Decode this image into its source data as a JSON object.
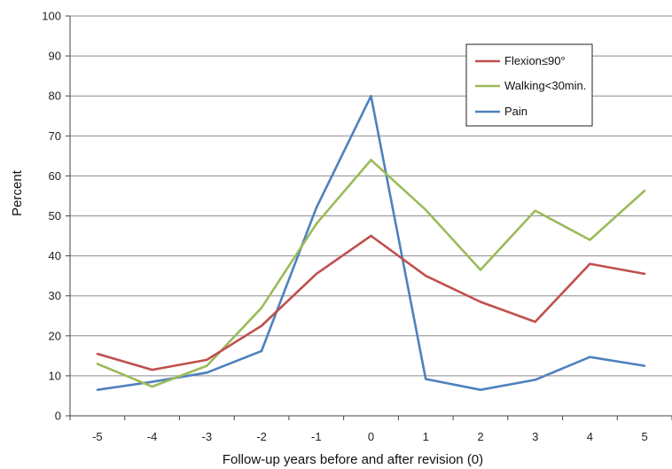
{
  "chart_data": {
    "type": "line",
    "title": "",
    "xlabel": "Follow-up years before and after revision (0)",
    "ylabel": "Percent",
    "x": [
      -5,
      -4,
      -3,
      -2,
      -1,
      0,
      1,
      2,
      3,
      4,
      5
    ],
    "x_tick_labels": [
      "-5",
      "-4",
      "-3",
      "-2",
      "-1",
      "0",
      "1",
      "2",
      "3",
      "4",
      "5"
    ],
    "ylim": [
      0,
      100
    ],
    "y_ticks": [
      0,
      10,
      20,
      30,
      40,
      50,
      60,
      70,
      80,
      90,
      100
    ],
    "grid": "horizontal",
    "legend_position": "top-right",
    "series": [
      {
        "name": "Flexion≤90°",
        "color": "#c0504d",
        "values": [
          15.5,
          11.5,
          14,
          22.5,
          35.5,
          45,
          35,
          28.5,
          23.5,
          38,
          35.5
        ]
      },
      {
        "name": "Walking<30min.",
        "color": "#9bbb59",
        "values": [
          13,
          7.3,
          12.5,
          27,
          48,
          64,
          51.5,
          36.5,
          51.3,
          44,
          56.3
        ]
      },
      {
        "name": "Pain",
        "color": "#4f81bd",
        "values": [
          6.5,
          8.5,
          10.8,
          16.2,
          52,
          80,
          9.2,
          6.5,
          9,
          14.7,
          12.5
        ]
      }
    ]
  }
}
